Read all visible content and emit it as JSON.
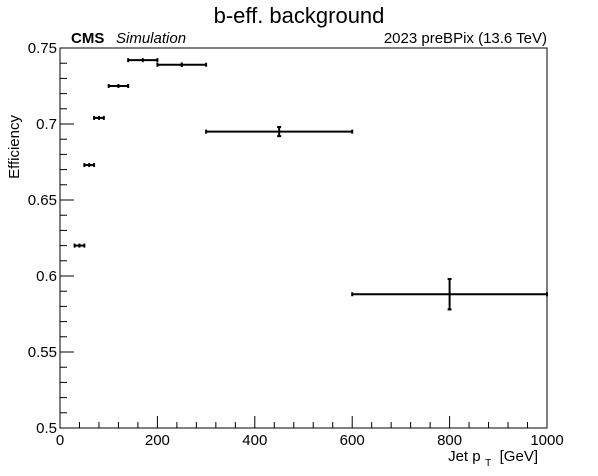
{
  "chart_data": {
    "type": "scatter",
    "title": "b-eff. background",
    "experiment": "CMS",
    "experiment_label": "Simulation",
    "lumi_label": "2023 preBPix (13.6 TeV)",
    "xlabel": "Jet p",
    "xlabel_sub": "T",
    "xlabel_unit": "[GeV]",
    "ylabel": "Efficiency",
    "xlim": [
      0,
      1000
    ],
    "ylim": [
      0.5,
      0.75
    ],
    "x_ticks": [
      0,
      200,
      400,
      600,
      800,
      1000
    ],
    "y_ticks": [
      0.5,
      0.55,
      0.6,
      0.65,
      0.7,
      0.75
    ],
    "y_tick_labels": [
      "0.5",
      "0.55",
      "0.6",
      "0.65",
      "0.7",
      "0.75"
    ],
    "grid": false,
    "color": "#000000",
    "points": [
      {
        "x": 40,
        "y": 0.62,
        "xerr": [
          10,
          10
        ],
        "yerr": 0.0007
      },
      {
        "x": 60,
        "y": 0.673,
        "xerr": [
          10,
          10
        ],
        "yerr": 0.0007
      },
      {
        "x": 80,
        "y": 0.704,
        "xerr": [
          10,
          10
        ],
        "yerr": 0.0008
      },
      {
        "x": 120,
        "y": 0.725,
        "xerr": [
          20,
          20
        ],
        "yerr": 0.0008
      },
      {
        "x": 170,
        "y": 0.742,
        "xerr": [
          30,
          30
        ],
        "yerr": 0.001
      },
      {
        "x": 250,
        "y": 0.739,
        "xerr": [
          50,
          50
        ],
        "yerr": 0.0015
      },
      {
        "x": 450,
        "y": 0.695,
        "xerr": [
          150,
          150
        ],
        "yerr": 0.003
      },
      {
        "x": 800,
        "y": 0.588,
        "xerr": [
          200,
          200
        ],
        "yerr": 0.01
      }
    ]
  }
}
